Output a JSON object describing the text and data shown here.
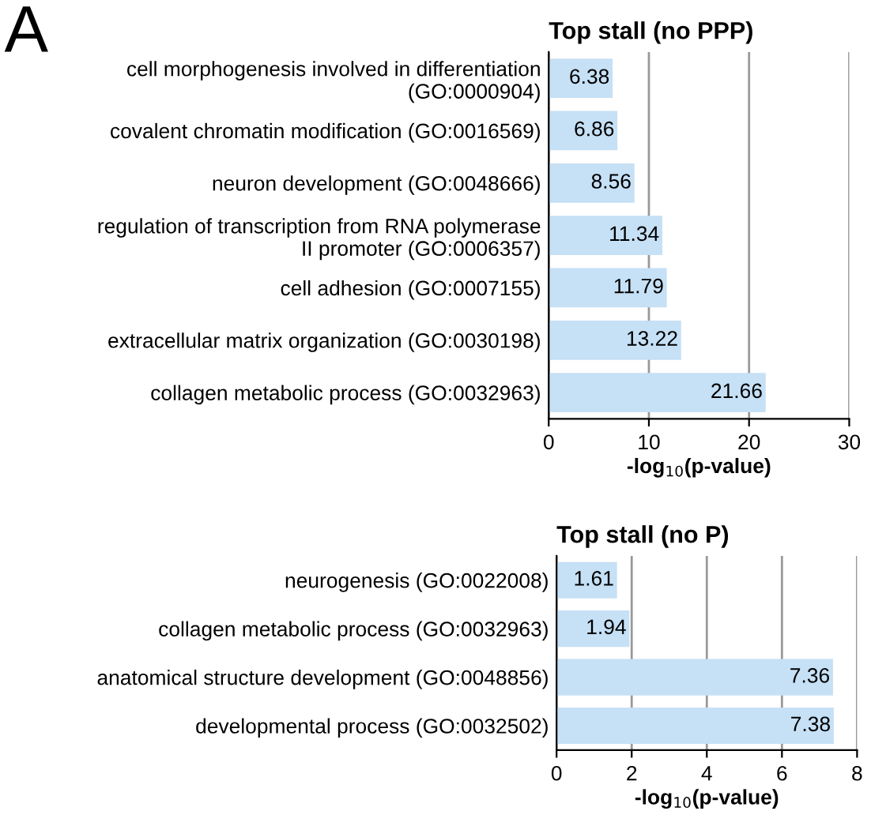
{
  "chart_data": [
    {
      "type": "bar",
      "orientation": "horizontal",
      "title": "Top stall (no PPP)",
      "xlabel": "-log$_{10}$(p-value)",
      "annotations": [
        "A"
      ],
      "categories": [
        "cell morphogenesis involved in differentiation\n(GO:0000904)",
        "covalent chromatin modification (GO:0016569)",
        "neuron development (GO:0048666)",
        "regulation of transcription from RNA polymerase\nII promoter (GO:0006357)",
        "cell adhesion (GO:0007155)",
        "extracellular matrix organization (GO:0030198)",
        "collagen metabolic process (GO:0032963)"
      ],
      "values": [
        6.38,
        6.86,
        8.56,
        11.34,
        11.79,
        13.22,
        21.66
      ],
      "color": "#c6e0f5",
      "data_labels": true,
      "xlim": [
        0,
        30
      ],
      "xticks": [
        0,
        10,
        20,
        30
      ],
      "grid": "x"
    },
    {
      "type": "bar",
      "orientation": "horizontal",
      "title": "Top stall (no P)",
      "xlabel": "-log$_{10}$(p-value)",
      "categories": [
        "neurogenesis (GO:0022008)",
        "collagen metabolic process (GO:0032963)",
        "anatomical structure development (GO:0048856)",
        "developmental process (GO:0032502)"
      ],
      "values": [
        1.61,
        1.94,
        7.36,
        7.38
      ],
      "color": "#c6e0f5",
      "data_labels": true,
      "xlim": [
        0,
        8
      ],
      "xticks": [
        0,
        2,
        4,
        6,
        8
      ],
      "grid": "x"
    }
  ]
}
